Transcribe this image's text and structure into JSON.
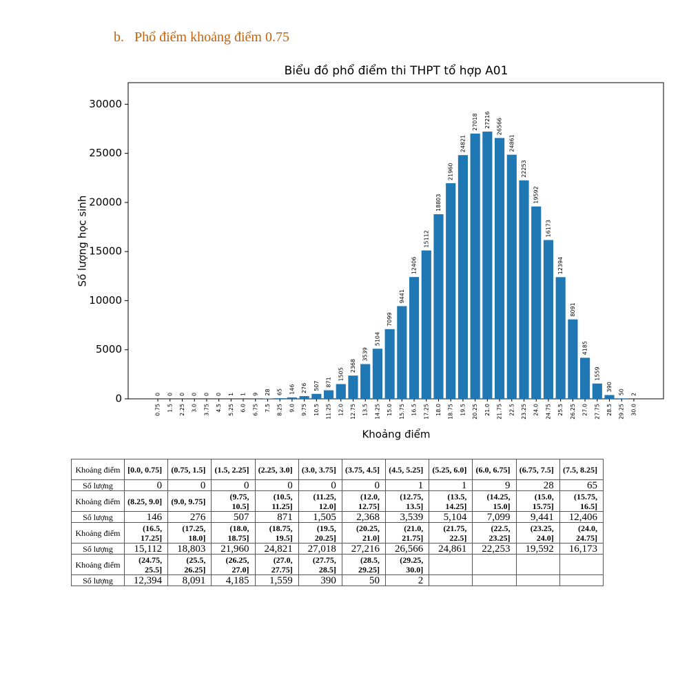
{
  "heading": "b.   Phổ điểm khoảng điểm 0.75",
  "chart_data": {
    "type": "bar",
    "title": "Biểu đồ phổ điểm thi THPT tổ hợp A01",
    "x_label": "Khoảng điểm",
    "y_label": "Số lượng học sinh",
    "color": "#1f77b4",
    "categories": [
      "0.75",
      "1.5",
      "2.25",
      "3.0",
      "3.75",
      "4.5",
      "5.25",
      "6.0",
      "6.75",
      "7.5",
      "8.25",
      "9.0",
      "9.75",
      "10.5",
      "11.25",
      "12.0",
      "12.75",
      "13.5",
      "14.25",
      "15.0",
      "15.75",
      "16.5",
      "17.25",
      "18.0",
      "18.75",
      "19.5",
      "20.25",
      "21.0",
      "21.75",
      "22.5",
      "23.25",
      "24.0",
      "24.75",
      "25.5",
      "26.25",
      "27.0",
      "27.75",
      "28.5",
      "29.25",
      "30.0"
    ],
    "values": [
      0,
      0,
      0,
      0,
      0,
      0,
      1,
      1,
      9,
      28,
      65,
      146,
      276,
      507,
      871,
      1505,
      2368,
      3539,
      5104,
      7099,
      9441,
      12406,
      15112,
      18803,
      21960,
      24821,
      27018,
      27216,
      26566,
      24861,
      22253,
      19592,
      16173,
      12394,
      8091,
      4185,
      1559,
      390,
      50,
      2
    ],
    "ylim": [
      0,
      32200
    ],
    "yticks": [
      0,
      5000,
      10000,
      15000,
      20000,
      25000,
      30000
    ]
  },
  "table": {
    "rows": [
      [
        "Khoảng điểm",
        "[0.0, 0.75]",
        "(0.75, 1.5]",
        "(1.5, 2.25]",
        "(2.25, 3.0]",
        "(3.0, 3.75]",
        "(3.75, 4.5]",
        "(4.5, 5.25]",
        "(5.25, 6.0]",
        "(6.0, 6.75]",
        "(6.75, 7.5]",
        "(7.5, 8.25]"
      ],
      [
        "Số lượng",
        "0",
        "0",
        "0",
        "0",
        "0",
        "0",
        "1",
        "1",
        "9",
        "28",
        "65"
      ],
      [
        "Khoảng điểm",
        "(8.25, 9.0]",
        "(9.0, 9.75]",
        "(9.75, 10.5]",
        "(10.5, 11.25]",
        "(11.25, 12.0]",
        "(12.0, 12.75]",
        "(12.75, 13.5]",
        "(13.5, 14.25]",
        "(14.25, 15.0]",
        "(15.0, 15.75]",
        "(15.75, 16.5]"
      ],
      [
        "Số lượng",
        "146",
        "276",
        "507",
        "871",
        "1,505",
        "2,368",
        "3,539",
        "5,104",
        "7,099",
        "9,441",
        "12,406"
      ],
      [
        "Khoảng điểm",
        "(16.5, 17.25]",
        "(17.25, 18.0]",
        "(18.0, 18.75]",
        "(18.75, 19.5]",
        "(19.5, 20.25]",
        "(20.25, 21.0]",
        "(21.0, 21.75]",
        "(21.75, 22.5]",
        "(22.5, 23.25]",
        "(23.25, 24.0]",
        "(24.0, 24.75]"
      ],
      [
        "Số lượng",
        "15,112",
        "18,803",
        "21,960",
        "24,821",
        "27,018",
        "27,216",
        "26,566",
        "24,861",
        "22,253",
        "19,592",
        "16,173"
      ],
      [
        "Khoảng điểm",
        "(24.75, 25.5]",
        "(25.5, 26.25]",
        "(26.25, 27.0]",
        "(27.0, 27.75]",
        "(27.75, 28.5]",
        "(28.5, 29.25]",
        "(29.25, 30.0]"
      ],
      [
        "Số lượng",
        "12,394",
        "8,091",
        "4,185",
        "1,559",
        "390",
        "50",
        "2"
      ]
    ]
  }
}
